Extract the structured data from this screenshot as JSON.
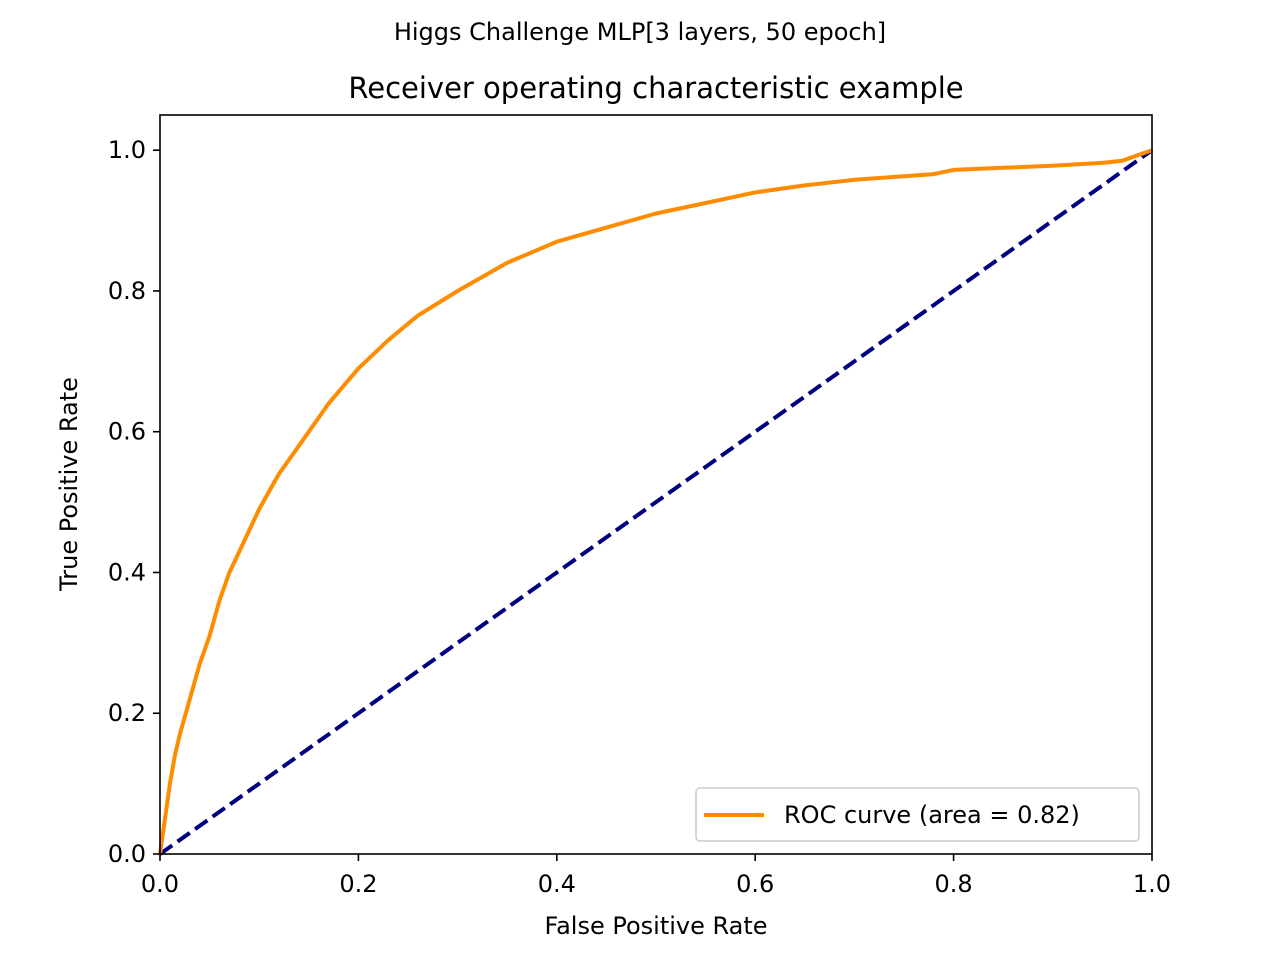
{
  "suptitle": "Higgs Challenge MLP[3 layers, 50 epoch]",
  "chart_data": {
    "type": "line",
    "title": "Receiver operating characteristic example",
    "xlabel": "False Positive Rate",
    "ylabel": "True Positive Rate",
    "xlim": [
      0.0,
      1.0
    ],
    "ylim": [
      0.0,
      1.05
    ],
    "xticks": [
      0.0,
      0.2,
      0.4,
      0.6,
      0.8,
      1.0
    ],
    "yticks": [
      0.0,
      0.2,
      0.4,
      0.6,
      0.8,
      1.0
    ],
    "xtick_labels": [
      "0.0",
      "0.2",
      "0.4",
      "0.6",
      "0.8",
      "1.0"
    ],
    "ytick_labels": [
      "0.0",
      "0.2",
      "0.4",
      "0.6",
      "0.8",
      "1.0"
    ],
    "grid": false,
    "legend_position": "lower-right",
    "series": [
      {
        "name": "ROC curve (area = 0.82)",
        "color": "#ff8c00",
        "line_style": "solid",
        "x": [
          0.0,
          0.005,
          0.01,
          0.015,
          0.02,
          0.03,
          0.04,
          0.05,
          0.06,
          0.07,
          0.08,
          0.09,
          0.1,
          0.12,
          0.14,
          0.16,
          0.17,
          0.2,
          0.23,
          0.26,
          0.3,
          0.35,
          0.4,
          0.45,
          0.5,
          0.55,
          0.6,
          0.65,
          0.7,
          0.75,
          0.78,
          0.8,
          0.85,
          0.9,
          0.95,
          0.97,
          0.98,
          1.0
        ],
        "y": [
          0.0,
          0.05,
          0.1,
          0.14,
          0.17,
          0.22,
          0.27,
          0.31,
          0.36,
          0.4,
          0.43,
          0.46,
          0.49,
          0.54,
          0.58,
          0.62,
          0.64,
          0.69,
          0.73,
          0.765,
          0.8,
          0.84,
          0.87,
          0.89,
          0.91,
          0.925,
          0.94,
          0.95,
          0.958,
          0.963,
          0.966,
          0.972,
          0.975,
          0.978,
          0.982,
          0.985,
          0.99,
          1.0
        ]
      },
      {
        "name": "",
        "color": "#000080",
        "line_style": "dashed",
        "x": [
          0.0,
          1.0
        ],
        "y": [
          0.0,
          1.0
        ]
      }
    ]
  }
}
